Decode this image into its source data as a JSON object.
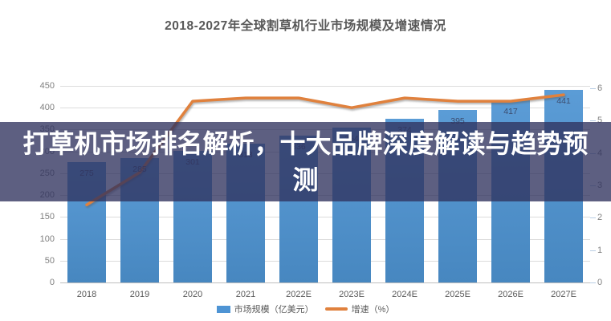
{
  "title": "2018-2027年全球割草机行业市场规模及增速情况",
  "overlay": {
    "text": "打草机市场排名解析，十大品牌深度解读与趋势预测"
  },
  "chart_data": {
    "type": "bar",
    "title": "2018-2027年全球割草机行业市场规模及增速情况",
    "categories": [
      "2018",
      "2019",
      "2020",
      "2021",
      "2022E",
      "2023E",
      "2024E",
      "2025E",
      "2026E",
      "2027E"
    ],
    "series": [
      {
        "name": "市场规模（亿美元）",
        "type": "bar",
        "axis": "left",
        "color": "#4e94d4",
        "values": [
          275,
          285,
          301,
          318,
          336,
          354,
          374,
          395,
          417,
          441
        ]
      },
      {
        "name": "增速（%）",
        "type": "line",
        "axis": "right",
        "color": "#e0813d",
        "values": [
          2.4,
          3.4,
          5.6,
          5.7,
          5.7,
          5.4,
          5.7,
          5.6,
          5.6,
          5.8
        ]
      }
    ],
    "left_axis": {
      "min": 0,
      "max": 450,
      "step": 50
    },
    "right_axis": {
      "min": 0,
      "max": 6,
      "step": 1
    },
    "grid": "horizontal",
    "legend_position": "bottom"
  }
}
